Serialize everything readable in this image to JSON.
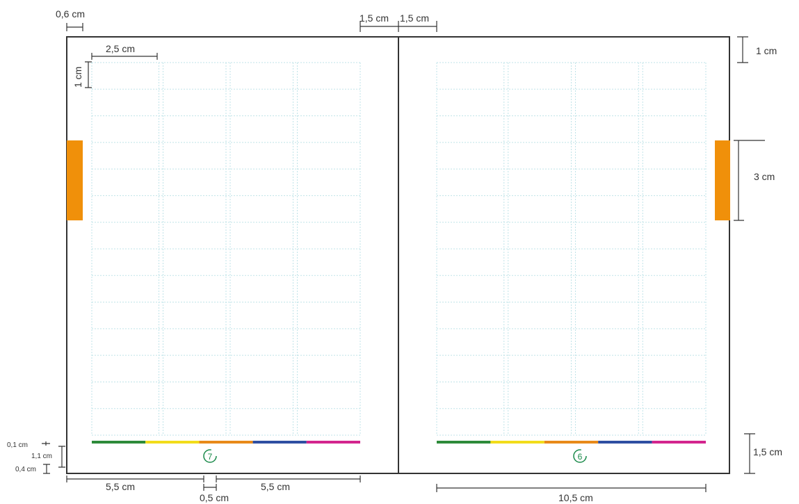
{
  "colors": {
    "frame": "#333333",
    "grid": "#bfe3e8",
    "tab": "#f0900a",
    "page_number": "#1a8a4a",
    "color_bar": [
      "#2e8b3a",
      "#f2dc1b",
      "#e88a1a",
      "#2f4fa2",
      "#d3258e"
    ]
  },
  "pages": [
    {
      "side": "left",
      "number": "7",
      "grid_columns": 4,
      "grid_rows": 14,
      "tab_icon": "orange-tab"
    },
    {
      "side": "right",
      "number": "6",
      "grid_columns": 4,
      "grid_rows": 14,
      "tab_icon": "orange-tab"
    }
  ],
  "dimensions": {
    "outer_margin": "0,6 cm",
    "spine_left": "1,5 cm",
    "spine_right": "1,5 cm",
    "cell_width": "2,5 cm",
    "cell_height": "1 cm",
    "top_margin": "1 cm",
    "tab_height": "3 cm",
    "bottom_band": "1,5 cm",
    "bar_gap": "0,1 cm",
    "bar_height": "1,1 cm",
    "bar_bottom": "0,4 cm",
    "half_width_left": "5,5 cm",
    "center_gap": "0,5 cm",
    "half_width_right": "5,5 cm",
    "content_width": "10,5 cm"
  }
}
